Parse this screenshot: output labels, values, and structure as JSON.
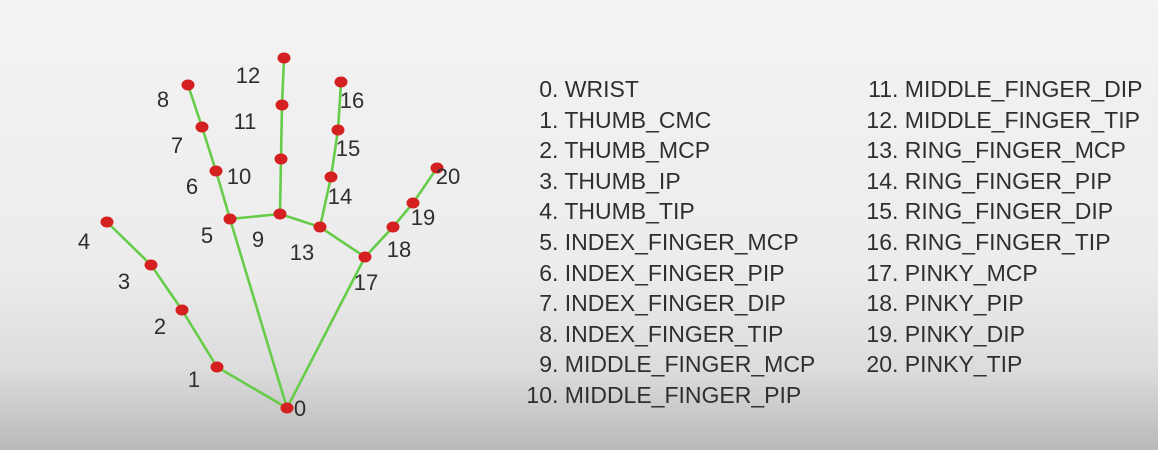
{
  "colors": {
    "bone": "#66cc4a",
    "joint": "#d42020",
    "text": "#2f2f2f",
    "background": "#efefef"
  },
  "landmarks": [
    {
      "id": "0",
      "label": "WRIST"
    },
    {
      "id": "1",
      "label": "THUMB_CMC"
    },
    {
      "id": "2",
      "label": "THUMB_MCP"
    },
    {
      "id": "3",
      "label": "THUMB_IP"
    },
    {
      "id": "4",
      "label": "THUMB_TIP"
    },
    {
      "id": "5",
      "label": "INDEX_FINGER_MCP"
    },
    {
      "id": "6",
      "label": "INDEX_FINGER_PIP"
    },
    {
      "id": "7",
      "label": "INDEX_FINGER_DIP"
    },
    {
      "id": "8",
      "label": "INDEX_FINGER_TIP"
    },
    {
      "id": "9",
      "label": "MIDDLE_FINGER_MCP"
    },
    {
      "id": "10",
      "label": "MIDDLE_FINGER_PIP"
    },
    {
      "id": "11",
      "label": "MIDDLE_FINGER_DIP"
    },
    {
      "id": "12",
      "label": "MIDDLE_FINGER_TIP"
    },
    {
      "id": "13",
      "label": "RING_FINGER_MCP"
    },
    {
      "id": "14",
      "label": "RING_FINGER_PIP"
    },
    {
      "id": "15",
      "label": "RING_FINGER_DIP"
    },
    {
      "id": "16",
      "label": "RING_FINGER_TIP"
    },
    {
      "id": "17",
      "label": "PINKY_MCP"
    },
    {
      "id": "18",
      "label": "PINKY_PIP"
    },
    {
      "id": "19",
      "label": "PINKY_DIP"
    },
    {
      "id": "20",
      "label": "PINKY_TIP"
    }
  ],
  "connections": [
    [
      0,
      1
    ],
    [
      1,
      2
    ],
    [
      2,
      3
    ],
    [
      3,
      4
    ],
    [
      0,
      5
    ],
    [
      5,
      6
    ],
    [
      6,
      7
    ],
    [
      7,
      8
    ],
    [
      5,
      9
    ],
    [
      9,
      10
    ],
    [
      10,
      11
    ],
    [
      11,
      12
    ],
    [
      9,
      13
    ],
    [
      13,
      14
    ],
    [
      14,
      15
    ],
    [
      15,
      16
    ],
    [
      13,
      17
    ],
    [
      17,
      18
    ],
    [
      18,
      19
    ],
    [
      19,
      20
    ],
    [
      0,
      17
    ]
  ]
}
